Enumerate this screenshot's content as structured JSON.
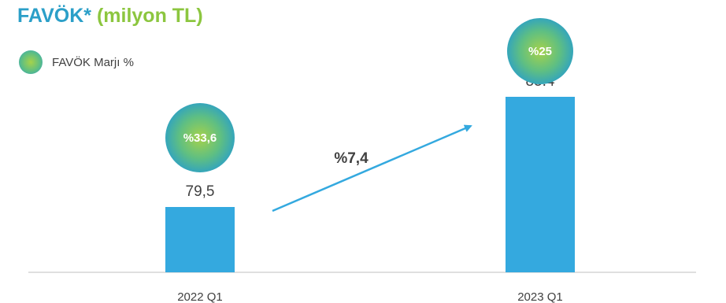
{
  "title_part1": "FAVÖK*",
  "title_part2": "(milyon TL)",
  "legend": {
    "label": "FAVÖK Marjı %"
  },
  "colors": {
    "bar": "#34a9df",
    "title_blue": "#2b9fc8",
    "title_green": "#8cc63f",
    "arrow": "#34a9df",
    "axis": "#bfbfbf",
    "text": "#404040",
    "bubble_text": "#ffffff"
  },
  "growth_label": "%7,4",
  "chart_data": {
    "type": "bar",
    "categories": [
      "2022 Q1",
      "2023 Q1"
    ],
    "values": [
      79.5,
      85.4
    ],
    "value_labels": [
      "79,5",
      "85.4"
    ],
    "margin_labels": [
      "%33,6",
      "%25"
    ],
    "series": [
      {
        "name": "",
        "values": [
          79.5,
          85.4
        ]
      }
    ],
    "secondary_series": {
      "name": "FAVÖK Marjı %",
      "values": [
        33.6,
        25
      ]
    },
    "title": "FAVÖK* (milyon TL)",
    "xlabel": "",
    "ylabel": "",
    "grid": false,
    "legend_position": "top-left"
  }
}
